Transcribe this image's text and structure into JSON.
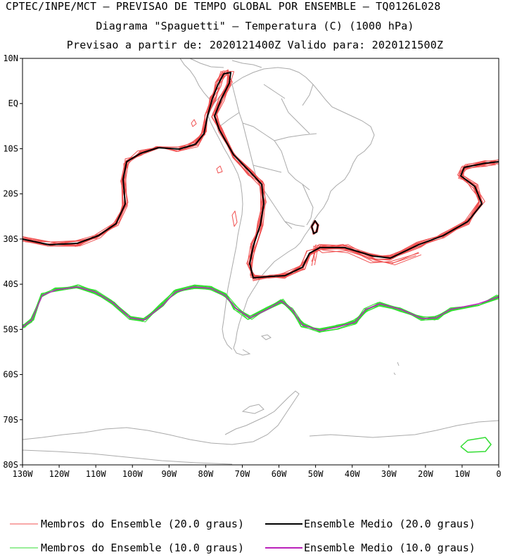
{
  "header": {
    "line1": "CPTEC/INPE/MCT – PREVISAO DE TEMPO GLOBAL POR ENSEMBLE – TQ0126L028",
    "line2": "Diagrama \"Spaguetti\" – Temperatura (C) (1000 hPa)",
    "line3": "Previsao a partir de: 2020121400Z  Valido para: 2020121500Z"
  },
  "map": {
    "lat_labels": [
      "10N",
      "EQ",
      "10S",
      "20S",
      "30S",
      "40S",
      "50S",
      "60S",
      "70S",
      "80S"
    ],
    "lon_labels": [
      "130W",
      "120W",
      "110W",
      "100W",
      "90W",
      "80W",
      "70W",
      "60W",
      "50W",
      "40W",
      "30W",
      "20W",
      "10W",
      "0"
    ],
    "colors": {
      "members_20": "#f05050",
      "mean_20": "#000000",
      "members_10": "#33dd33",
      "mean_10": "#bb22bb",
      "coast": "#aaaaaa"
    }
  },
  "legend": {
    "members_20": "Membros do Ensemble (20.0 graus)",
    "mean_20": "Ensemble Medio (20.0 graus)",
    "members_10": "Membros do Ensemble (10.0 graus)",
    "mean_10": "Ensemble Medio (10.0 graus)"
  }
}
